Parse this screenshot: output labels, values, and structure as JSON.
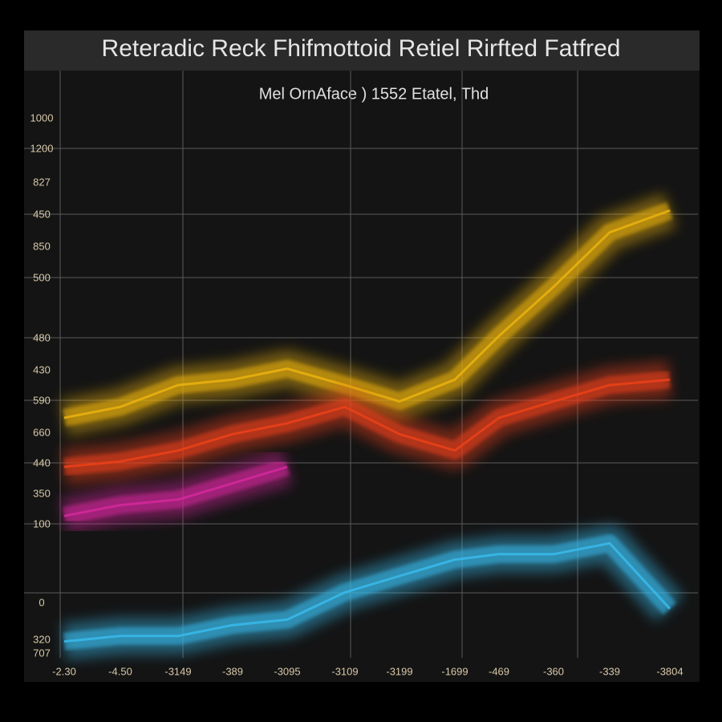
{
  "chart_data": {
    "type": "line",
    "title": "Reteradic Reck Fhifmottoid Retiel Rirfted Fatfred",
    "subtitle": "Mel OrnAface ) 1552 Etatel, Thd",
    "categories": [
      "-2.30",
      "-4.50",
      "-3149",
      "-389",
      "-3095",
      "-3109",
      "-3199",
      "-1699",
      "-469",
      "-360",
      "-339",
      "-3804"
    ],
    "y_labels": [
      "1000",
      "1200",
      "827",
      "450",
      "850",
      "500",
      "480",
      "430",
      "590",
      "660",
      "440",
      "350",
      "100",
      "0",
      "320",
      "707"
    ],
    "ylim": [
      0,
      100
    ],
    "grid": true,
    "series": [
      {
        "color": "#e8b010",
        "values": [
          44,
          46,
          50,
          51,
          53,
          50,
          47,
          51,
          59,
          68,
          78,
          82
        ]
      },
      {
        "color": "#e8401a",
        "values": [
          35,
          36,
          38,
          41,
          43,
          46,
          41,
          38,
          44,
          47,
          50,
          51
        ]
      },
      {
        "color": "#d0289a",
        "values": [
          26,
          28,
          29,
          32,
          35,
          null,
          null,
          null,
          null,
          null,
          null,
          null
        ]
      },
      {
        "color": "#38b8e8",
        "values": [
          3,
          4,
          4,
          6,
          7,
          12,
          15,
          18,
          19,
          19,
          21,
          9
        ]
      }
    ]
  }
}
